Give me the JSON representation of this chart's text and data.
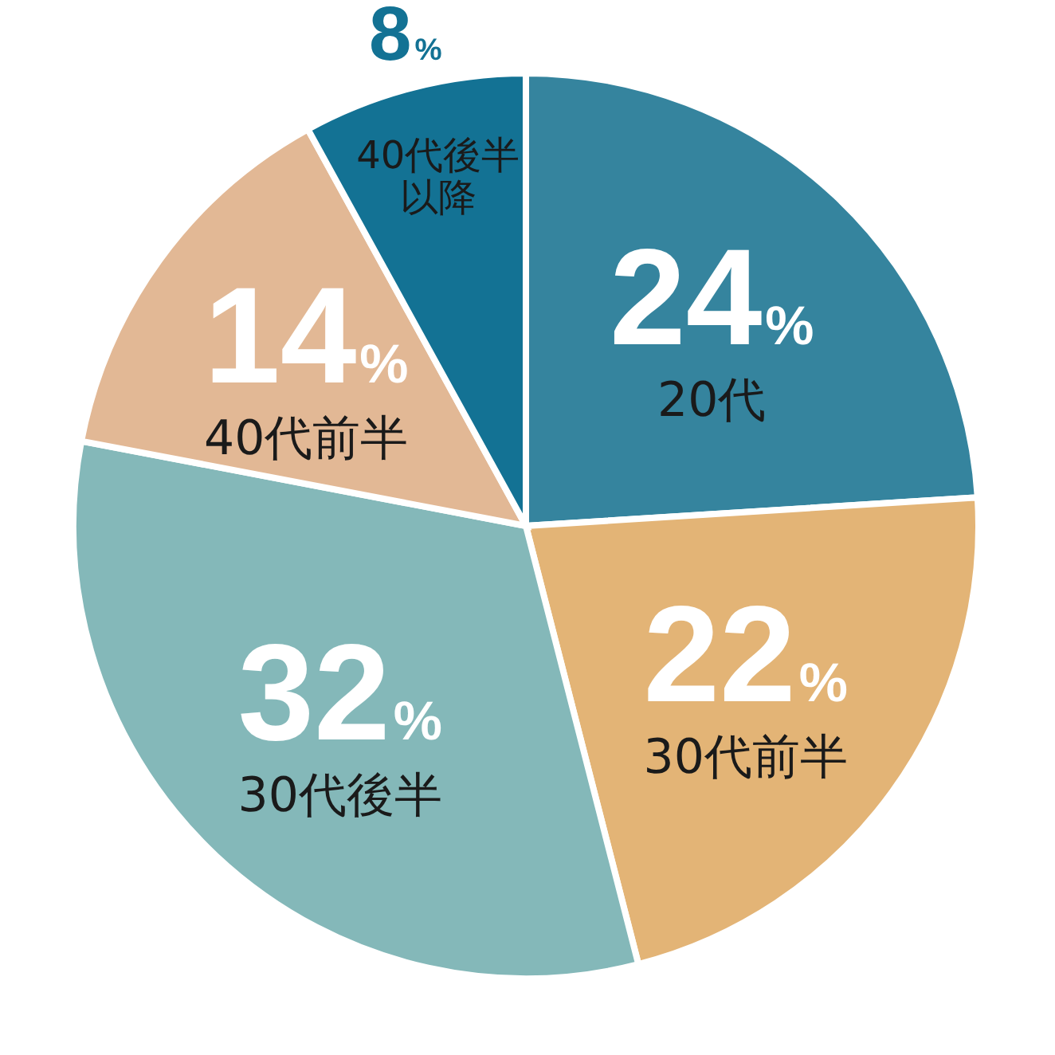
{
  "chart_data": {
    "type": "pie",
    "categories": [
      "20代",
      "30代前半",
      "30代後半",
      "40代前半",
      "40代後半以降"
    ],
    "values": [
      24,
      22,
      32,
      14,
      8
    ],
    "colors": [
      "#35849e",
      "#e3b476",
      "#84b8b9",
      "#e2b895",
      "#137294"
    ],
    "value_labels": [
      "24%",
      "22%",
      "32%",
      "14%",
      "8%"
    ]
  }
}
